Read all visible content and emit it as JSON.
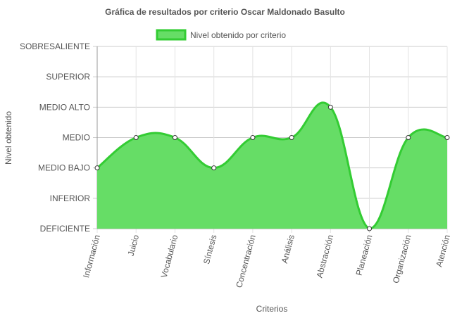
{
  "chart_data": {
    "type": "area",
    "title": "Gráfica de resultados por criterio Oscar Maldonado Basulto",
    "xlabel": "Criterios",
    "ylabel": "Nivel obtenido",
    "y_levels": [
      "DEFICIENTE",
      "INFERIOR",
      "MEDIO BAJO",
      "MEDIO",
      "MEDIO ALTO",
      "SUPERIOR",
      "SOBRESALIENTE"
    ],
    "categories": [
      "Información",
      "Juicio",
      "Vocabulario",
      "Síntesis",
      "Concentración",
      "Análisis",
      "Abstracción",
      "Planeación",
      "Organización",
      "Atención"
    ],
    "series": [
      {
        "name": "Nivel obtenido por criterio",
        "values": [
          "MEDIO BAJO",
          "MEDIO",
          "MEDIO",
          "MEDIO BAJO",
          "MEDIO",
          "MEDIO",
          "MEDIO ALTO",
          "DEFICIENTE",
          "MEDIO",
          "MEDIO"
        ],
        "fill_color": "#66dd66",
        "line_color": "#33cc33"
      }
    ],
    "grid": true,
    "legend_position": "top"
  }
}
